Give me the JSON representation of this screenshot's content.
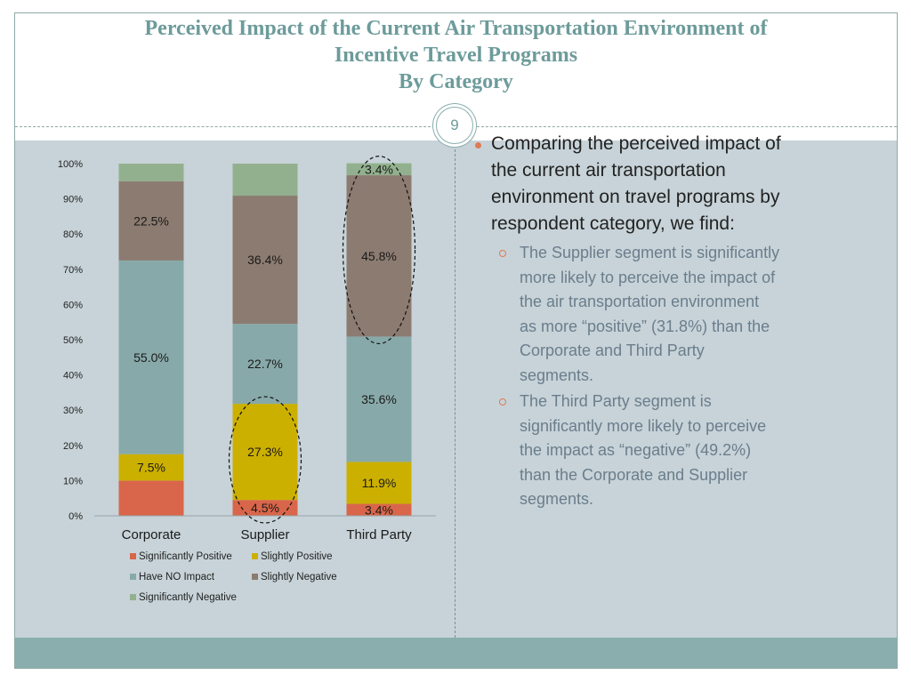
{
  "slide": {
    "title_lines": [
      "Perceived Impact of the Current Air Transportation Environment of",
      "Incentive Travel Programs",
      "By Category"
    ],
    "page_number": "9"
  },
  "chart_data": {
    "type": "bar",
    "stacked": true,
    "categories": [
      "Corporate",
      "Supplier",
      "Third Party"
    ],
    "series": [
      {
        "name": "Significantly Positive",
        "color": "#d9664a",
        "values": [
          10.0,
          4.5,
          3.4
        ],
        "labels": [
          "",
          "4.5%",
          "3.4%"
        ]
      },
      {
        "name": "Slightly Positive",
        "color": "#ccb000",
        "values": [
          7.5,
          27.3,
          11.9
        ],
        "labels": [
          "7.5%",
          "27.3%",
          "11.9%"
        ]
      },
      {
        "name": "Have NO Impact",
        "color": "#88a9a9",
        "values": [
          55.0,
          22.7,
          35.6
        ],
        "labels": [
          "55.0%",
          "22.7%",
          "35.6%"
        ]
      },
      {
        "name": "Slightly Negative",
        "color": "#8c7b70",
        "values": [
          22.5,
          36.4,
          45.8
        ],
        "labels": [
          "22.5%",
          "36.4%",
          "45.8%"
        ]
      },
      {
        "name": "Significantly Negative",
        "color": "#92b08e",
        "values": [
          5.0,
          9.1,
          3.4
        ],
        "labels": [
          "",
          "",
          "3.4%"
        ]
      }
    ],
    "y_ticks": [
      "0%",
      "10%",
      "20%",
      "30%",
      "40%",
      "50%",
      "60%",
      "70%",
      "80%",
      "90%",
      "100%"
    ],
    "ylim": [
      0,
      100
    ],
    "highlights": [
      {
        "category": "Supplier",
        "series": [
          "Significantly Positive",
          "Slightly Positive"
        ]
      },
      {
        "category": "Third Party",
        "series": [
          "Slightly Negative",
          "Significantly Negative"
        ]
      }
    ],
    "legend_position": "bottom"
  },
  "notes": {
    "main": [
      "Comparing the perceived impact of",
      "the current air transportation",
      "environment on travel programs by",
      "respondent category, we find:"
    ],
    "subs": [
      [
        "The Supplier segment is significantly",
        "more likely to perceive the impact of",
        "the air transportation environment",
        "as more “positive” (31.8%) than the",
        "Corporate and Third Party",
        "segments."
      ],
      [
        "The Third Party segment is",
        "significantly more likely to perceive",
        "the impact as “negative” (49.2%)",
        "than the Corporate and Supplier",
        "segments."
      ]
    ]
  }
}
